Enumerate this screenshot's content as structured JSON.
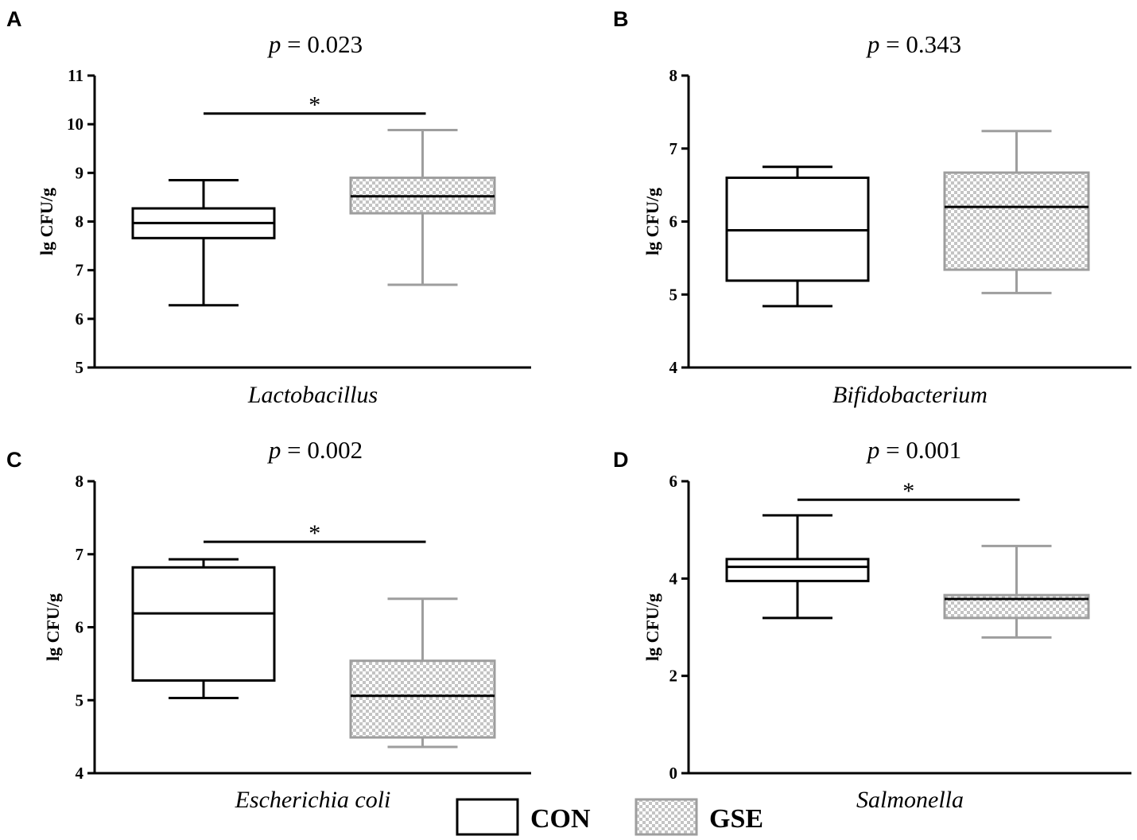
{
  "colors": {
    "con": "#000000",
    "gse": "#9e9e9e",
    "gse_pattern_light": "#ffffff",
    "gse_pattern_dark": "#c4c4c4"
  },
  "legend": [
    {
      "key": "con",
      "label": "CON"
    },
    {
      "key": "gse",
      "label": "GSE"
    }
  ],
  "chart_data": [
    {
      "type": "box",
      "panel": "A",
      "p_symbol": "p",
      "p_rest": " = 0.023",
      "xlabel": "Lactobacillus",
      "ylabel": "lg CFU/g",
      "ylim": [
        5,
        11
      ],
      "yticks": [
        5,
        6,
        7,
        8,
        9,
        10,
        11
      ],
      "series": [
        {
          "name": "CON",
          "min": 6.28,
          "q1": 7.66,
          "median": 7.97,
          "q3": 8.27,
          "max": 8.85
        },
        {
          "name": "GSE",
          "min": 6.7,
          "q1": 8.17,
          "median": 8.52,
          "q3": 8.9,
          "max": 9.88
        }
      ],
      "significance": {
        "label": "*",
        "y": 10.22
      }
    },
    {
      "type": "box",
      "panel": "B",
      "p_symbol": "p",
      "p_rest": " = 0.343",
      "xlabel": "Bifidobacterium",
      "ylabel": "lg CFU/g",
      "ylim": [
        4,
        8
      ],
      "yticks": [
        4,
        5,
        6,
        7,
        8
      ],
      "series": [
        {
          "name": "CON",
          "min": 4.84,
          "q1": 5.19,
          "median": 5.88,
          "q3": 6.6,
          "max": 6.75
        },
        {
          "name": "GSE",
          "min": 5.02,
          "q1": 5.34,
          "median": 6.2,
          "q3": 6.67,
          "max": 7.24
        }
      ],
      "significance": null
    },
    {
      "type": "box",
      "panel": "C",
      "p_symbol": "p",
      "p_rest": " = 0.002",
      "xlabel": "Escherichia coli",
      "ylabel": "lg CFU/g",
      "ylim": [
        4,
        8
      ],
      "yticks": [
        4,
        5,
        6,
        7,
        8
      ],
      "series": [
        {
          "name": "CON",
          "min": 5.03,
          "q1": 5.27,
          "median": 6.19,
          "q3": 6.82,
          "max": 6.93
        },
        {
          "name": "GSE",
          "min": 4.36,
          "q1": 4.49,
          "median": 5.06,
          "q3": 5.54,
          "max": 6.39
        }
      ],
      "significance": {
        "label": "*",
        "y": 7.17
      }
    },
    {
      "type": "box",
      "panel": "D",
      "p_symbol": "p",
      "p_rest": " = 0.001",
      "xlabel": "Salmonella",
      "ylabel": "lg CFU/g",
      "ylim": [
        0,
        6
      ],
      "yticks": [
        0,
        2,
        4,
        6
      ],
      "series": [
        {
          "name": "CON",
          "min": 3.19,
          "q1": 3.95,
          "median": 4.24,
          "q3": 4.4,
          "max": 5.3
        },
        {
          "name": "GSE",
          "min": 2.79,
          "q1": 3.19,
          "median": 3.58,
          "q3": 3.66,
          "max": 4.67
        }
      ],
      "significance": {
        "label": "*",
        "y": 5.62
      }
    }
  ]
}
